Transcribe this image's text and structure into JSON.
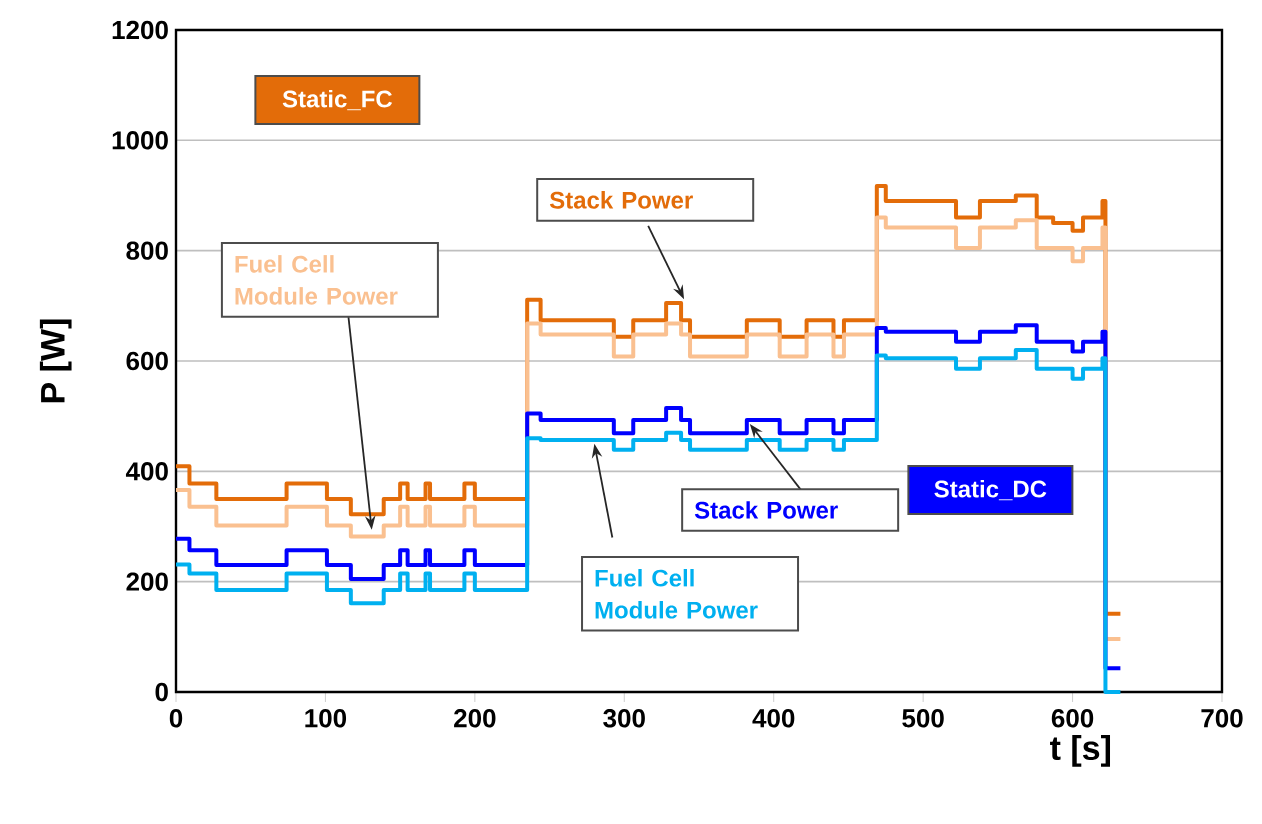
{
  "chart_data": {
    "type": "step",
    "xlabel": "t [s]",
    "ylabel": "P [W]",
    "x": [
      0,
      9,
      27,
      74,
      101,
      117,
      139,
      150,
      155,
      167,
      170,
      193,
      200,
      235,
      244,
      293,
      306,
      328,
      338,
      344,
      382,
      404,
      422,
      440,
      447,
      469,
      475,
      522,
      538,
      562,
      576,
      587,
      600,
      607,
      620,
      622,
      632
    ],
    "series": [
      {
        "name": "Stack Power",
        "color": "#e36c09",
        "values": [
          409,
          378,
          350,
          378,
          350,
          322,
          350,
          378,
          350,
          378,
          350,
          378,
          350,
          711,
          674,
          644,
          674,
          705,
          674,
          644,
          674,
          644,
          674,
          644,
          674,
          917,
          890,
          860,
          890,
          900,
          860,
          850,
          836,
          860,
          890,
          142,
          142
        ]
      },
      {
        "name": "Fuel Cell Module Power",
        "color": "#fac090",
        "values": [
          366,
          336,
          302,
          336,
          302,
          282,
          302,
          336,
          302,
          336,
          302,
          336,
          302,
          668,
          648,
          608,
          648,
          668,
          648,
          608,
          648,
          608,
          648,
          608,
          648,
          860,
          842,
          805,
          842,
          855,
          805,
          805,
          781,
          805,
          842,
          96,
          96
        ]
      },
      {
        "name": "Stack Power",
        "color": "#0000ff",
        "values": [
          278,
          257,
          230,
          257,
          230,
          205,
          230,
          257,
          230,
          257,
          230,
          257,
          230,
          505,
          493,
          469,
          493,
          515,
          493,
          469,
          493,
          469,
          493,
          469,
          493,
          660,
          653,
          635,
          653,
          665,
          635,
          635,
          617,
          635,
          653,
          43,
          43
        ]
      },
      {
        "name": "Fuel Cell Module Power",
        "color": "#00b0f0",
        "values": [
          231,
          215,
          185,
          215,
          185,
          161,
          185,
          215,
          185,
          215,
          185,
          215,
          185,
          460,
          457,
          439,
          457,
          470,
          457,
          439,
          457,
          439,
          457,
          439,
          457,
          610,
          605,
          586,
          605,
          620,
          586,
          586,
          568,
          586,
          605,
          0,
          0
        ]
      }
    ],
    "annotations": [
      "Static_FC",
      "Static_DC"
    ],
    "xlim": [
      0,
      700
    ],
    "xticks": [
      0,
      100,
      200,
      300,
      400,
      500,
      600,
      700
    ],
    "ylim": [
      0,
      1200
    ],
    "yticks": [
      0,
      200,
      400,
      600,
      800,
      1000,
      1200
    ],
    "grid": "y",
    "marker": "none",
    "line_style": "solid"
  }
}
